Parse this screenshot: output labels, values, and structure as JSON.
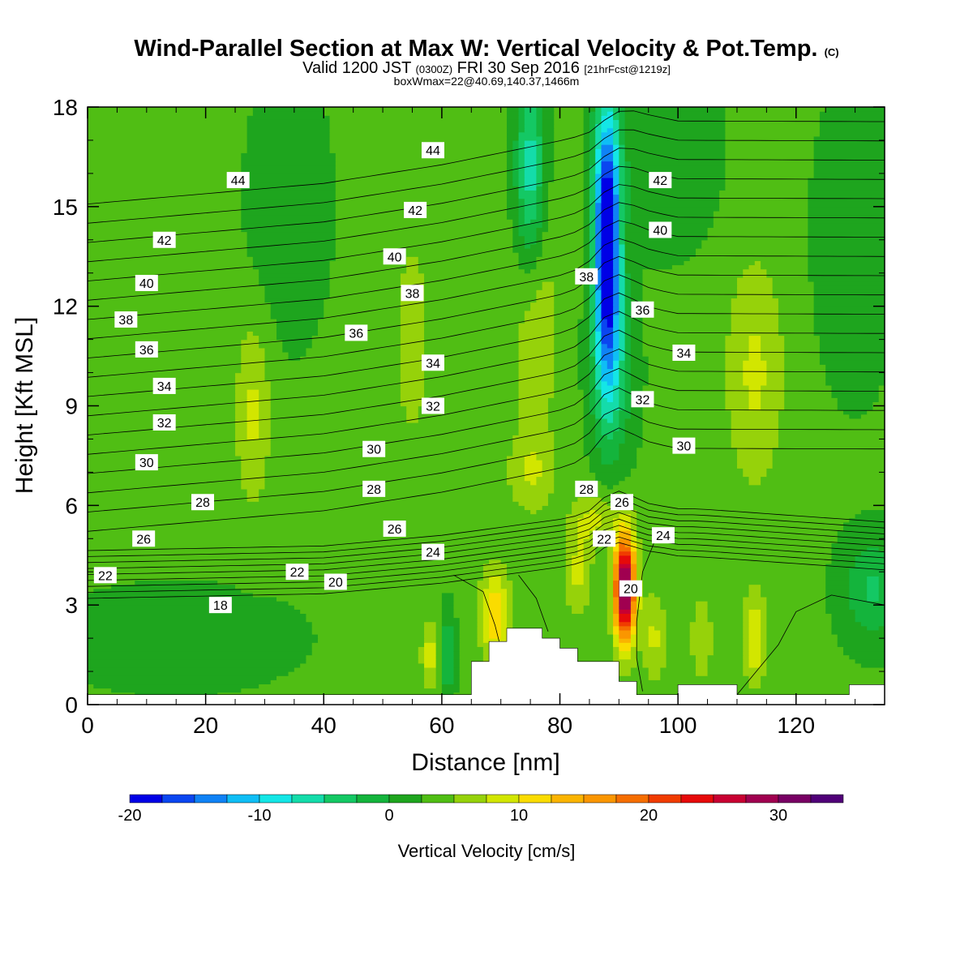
{
  "header": {
    "title": "Wind-Parallel Section at Max W: Vertical Velocity & Pot.Temp.",
    "title_mark": "(C)",
    "valid_prefix": "Valid 1200 JST",
    "valid_utc": "(0300Z)",
    "valid_date": "FRI 30 Sep 2016",
    "valid_fcst": "[21hrFcst@1219z]",
    "box_info": "boxWmax=22@40.69,140.37,1466m"
  },
  "chart_data": {
    "type": "heatmap",
    "xlabel": "Distance [nm]",
    "ylabel": "Height [Kft MSL]",
    "xlim": [
      0,
      135
    ],
    "ylim": [
      0,
      18
    ],
    "x_ticks": [
      0,
      20,
      40,
      60,
      80,
      100,
      120
    ],
    "y_ticks": [
      0,
      3,
      6,
      9,
      12,
      15,
      18
    ],
    "colorbar": {
      "label": "Vertical Velocity [cm/s]",
      "range": [
        -20,
        35
      ],
      "step": 2.5,
      "ticks": [
        -20,
        -10,
        0,
        10,
        20,
        30
      ],
      "colors": [
        "#0000e6",
        "#0a46f0",
        "#0f82f5",
        "#0fbef5",
        "#14e6e6",
        "#14dcaa",
        "#14c864",
        "#14b43c",
        "#1ea51e",
        "#50be14",
        "#96d20a",
        "#d2e600",
        "#fadc00",
        "#fab400",
        "#fa9600",
        "#f56e00",
        "#f03c00",
        "#e60a0a",
        "#c80032",
        "#a00050",
        "#780064",
        "#500078"
      ]
    },
    "contour_field": "Potential temperature (theta) isentropes, 1 unit interval, labeled every 2",
    "theta_labels": [
      {
        "v": "44",
        "x": 25.5,
        "y": 15.8
      },
      {
        "v": "44",
        "x": 58.5,
        "y": 16.7
      },
      {
        "v": "42",
        "x": 13.0,
        "y": 14.0
      },
      {
        "v": "42",
        "x": 55.5,
        "y": 14.9
      },
      {
        "v": "42",
        "x": 97.0,
        "y": 15.8
      },
      {
        "v": "40",
        "x": 10.0,
        "y": 12.7
      },
      {
        "v": "40",
        "x": 52.0,
        "y": 13.5
      },
      {
        "v": "40",
        "x": 97.0,
        "y": 14.3
      },
      {
        "v": "38",
        "x": 6.5,
        "y": 11.6
      },
      {
        "v": "38",
        "x": 55.0,
        "y": 12.4
      },
      {
        "v": "38",
        "x": 84.5,
        "y": 12.9
      },
      {
        "v": "36",
        "x": 10.0,
        "y": 10.7
      },
      {
        "v": "36",
        "x": 45.5,
        "y": 11.2
      },
      {
        "v": "36",
        "x": 94.0,
        "y": 11.9
      },
      {
        "v": "34",
        "x": 13.0,
        "y": 9.6
      },
      {
        "v": "34",
        "x": 58.5,
        "y": 10.3
      },
      {
        "v": "34",
        "x": 101.0,
        "y": 10.6
      },
      {
        "v": "32",
        "x": 13.0,
        "y": 8.5
      },
      {
        "v": "32",
        "x": 58.5,
        "y": 9.0
      },
      {
        "v": "32",
        "x": 94.0,
        "y": 9.2
      },
      {
        "v": "30",
        "x": 10.0,
        "y": 7.3
      },
      {
        "v": "30",
        "x": 48.5,
        "y": 7.7
      },
      {
        "v": "30",
        "x": 101.0,
        "y": 7.8
      },
      {
        "v": "28",
        "x": 19.5,
        "y": 6.1
      },
      {
        "v": "28",
        "x": 48.5,
        "y": 6.5
      },
      {
        "v": "28",
        "x": 84.5,
        "y": 6.5
      },
      {
        "v": "26",
        "x": 9.5,
        "y": 5.0
      },
      {
        "v": "26",
        "x": 52.0,
        "y": 5.3
      },
      {
        "v": "26",
        "x": 90.5,
        "y": 6.1
      },
      {
        "v": "24",
        "x": 58.5,
        "y": 4.6
      },
      {
        "v": "24",
        "x": 97.5,
        "y": 5.1
      },
      {
        "v": "22",
        "x": 3.0,
        "y": 3.9
      },
      {
        "v": "22",
        "x": 35.5,
        "y": 4.0
      },
      {
        "v": "22",
        "x": 87.5,
        "y": 5.0
      },
      {
        "v": "20",
        "x": 42.0,
        "y": 3.7
      },
      {
        "v": "20",
        "x": 92.0,
        "y": 3.5
      },
      {
        "v": "18",
        "x": 22.5,
        "y": 3.0
      }
    ],
    "terrain": [
      [
        0,
        0.3
      ],
      [
        65,
        0.3
      ],
      [
        65,
        1.3
      ],
      [
        68,
        1.3
      ],
      [
        68,
        1.9
      ],
      [
        71,
        1.9
      ],
      [
        71,
        2.3
      ],
      [
        77,
        2.3
      ],
      [
        77,
        2.0
      ],
      [
        80,
        2.0
      ],
      [
        80,
        1.7
      ],
      [
        83,
        1.7
      ],
      [
        83,
        1.3
      ],
      [
        90,
        1.3
      ],
      [
        90,
        0.7
      ],
      [
        93,
        0.7
      ],
      [
        93,
        0.3
      ],
      [
        100,
        0.3
      ],
      [
        100,
        0.6
      ],
      [
        110,
        0.6
      ],
      [
        110,
        0.3
      ],
      [
        129,
        0.3
      ],
      [
        129,
        0.6
      ],
      [
        135,
        0.6
      ]
    ]
  }
}
